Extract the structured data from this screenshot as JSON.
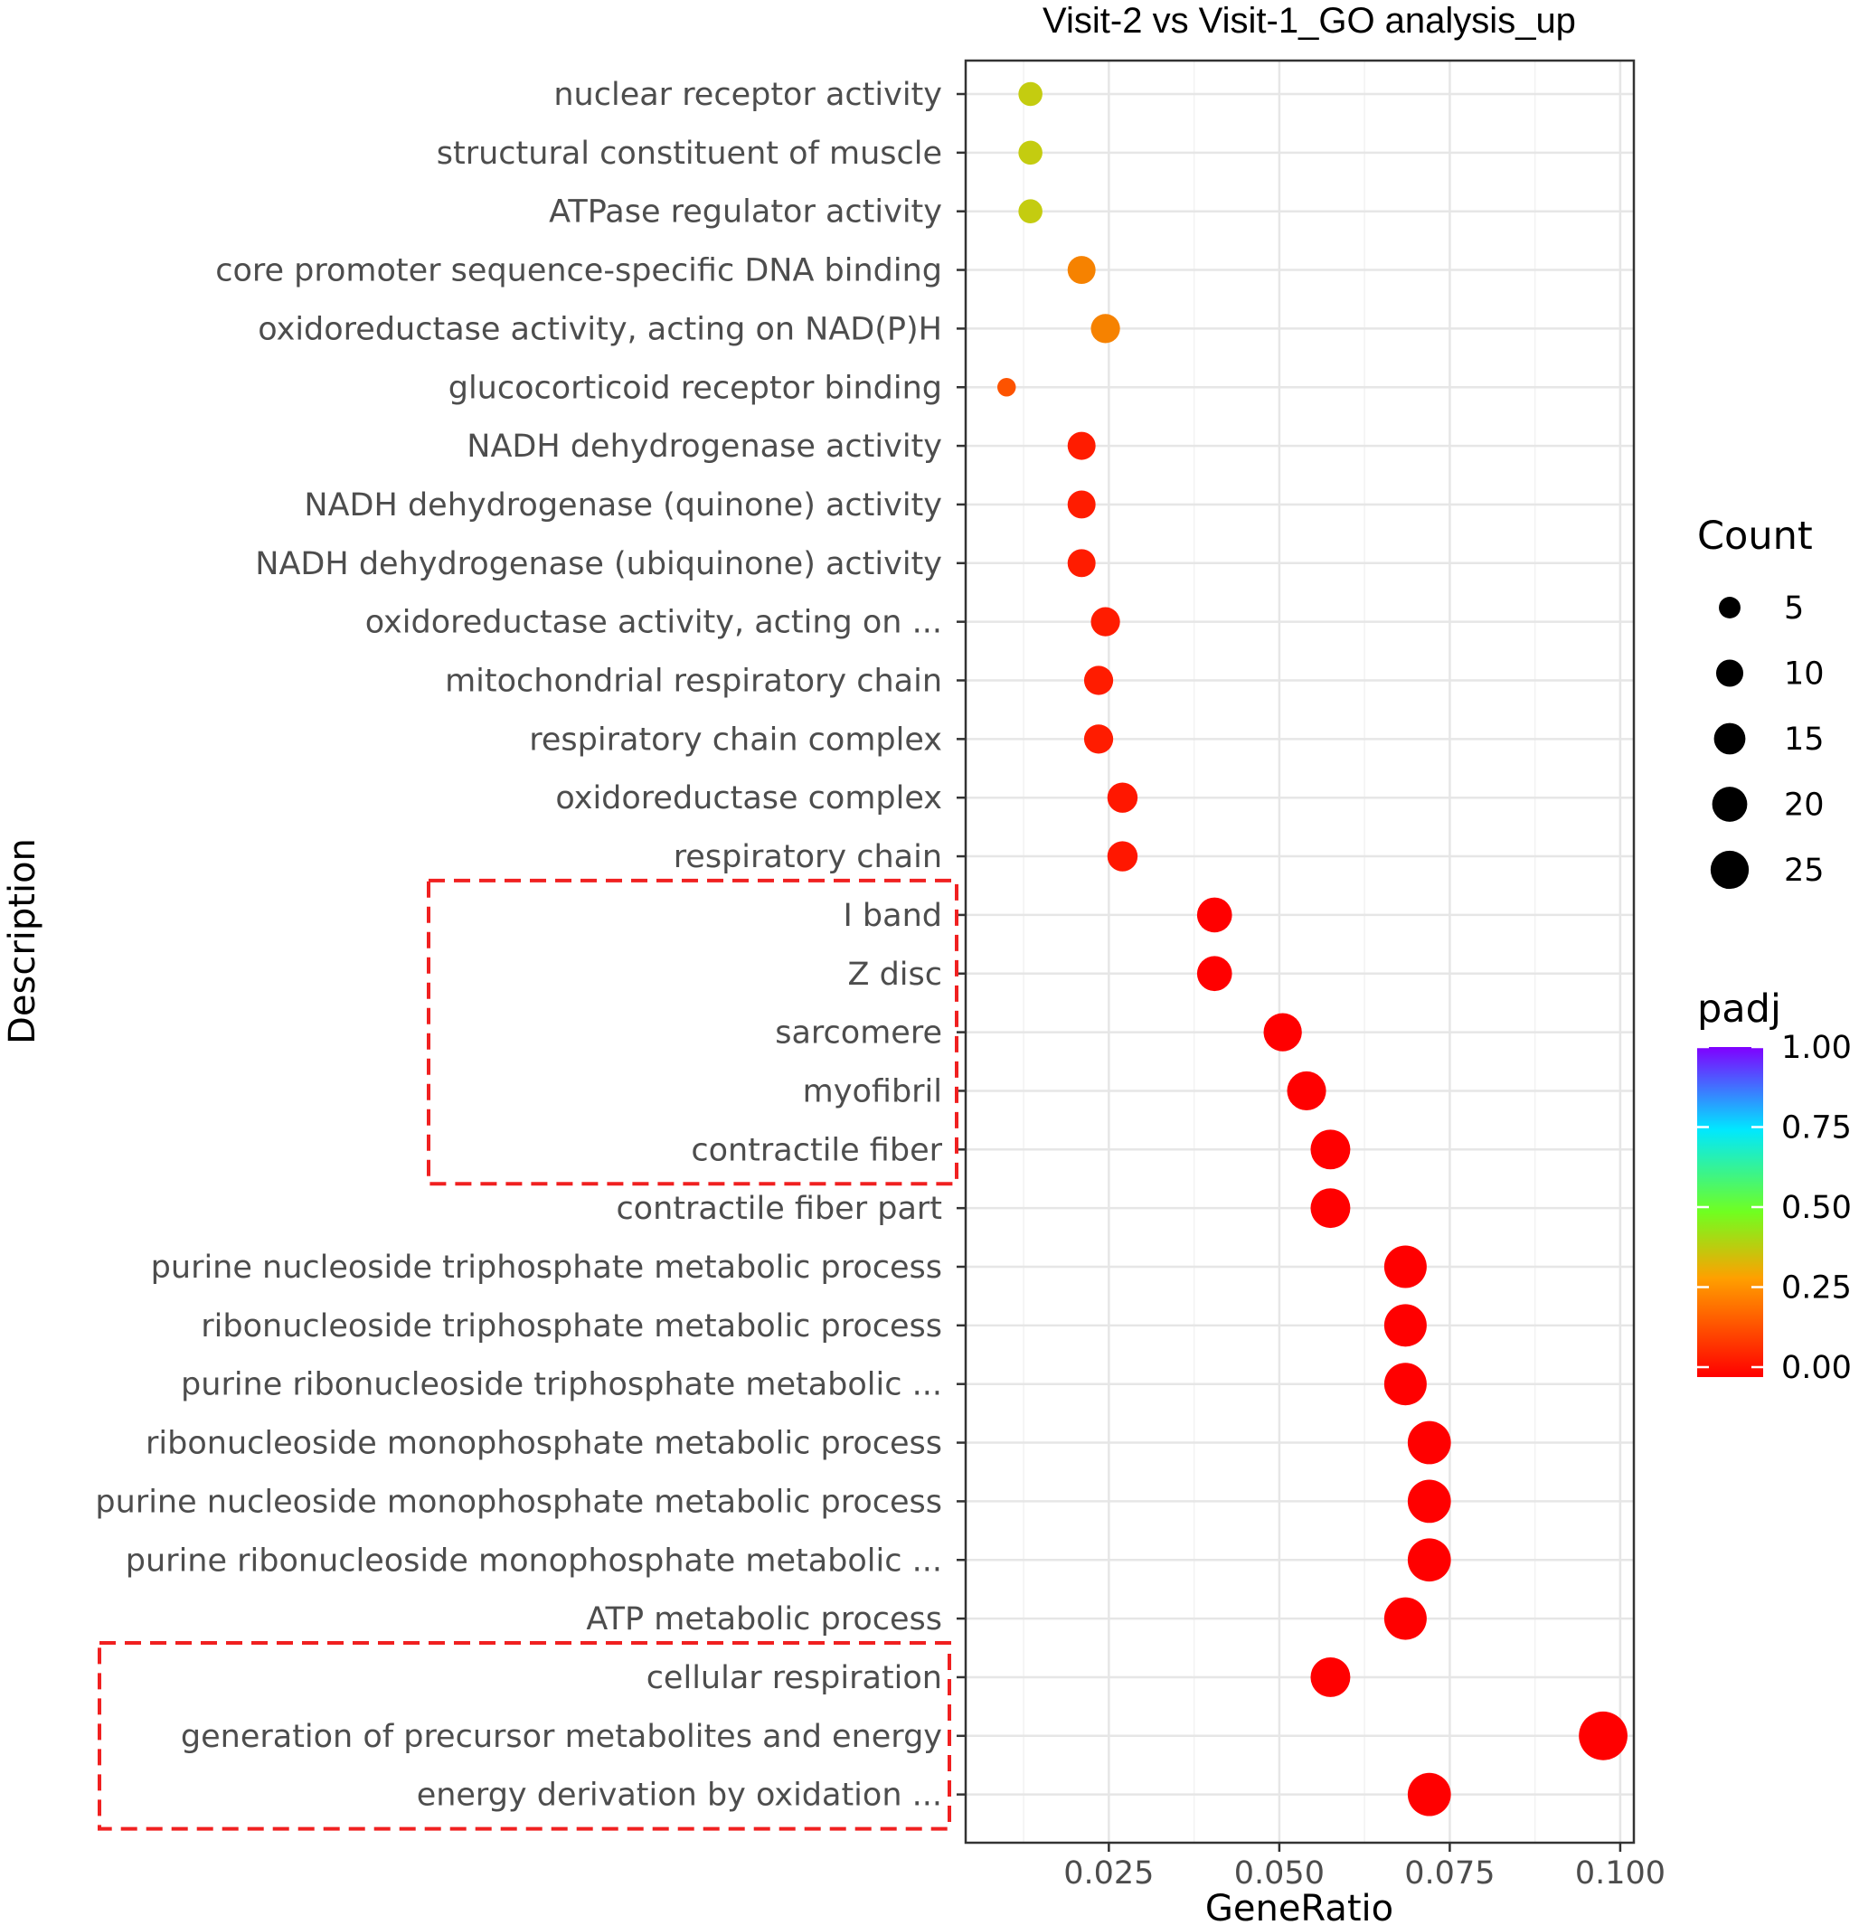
{
  "chart_data": {
    "type": "scatter",
    "title": "Visit-2 vs Visit-1_GO analysis_up",
    "xlabel": "GeneRatio",
    "ylabel": "Description",
    "xlim": [
      0.004,
      0.102
    ],
    "xticks": [
      0.025,
      0.05,
      0.075,
      0.1
    ],
    "xtick_labels": [
      "0.025",
      "0.050",
      "0.075",
      "0.100"
    ],
    "grid": true,
    "terms": [
      {
        "label": "nuclear receptor activity",
        "gene_ratio": 0.0135,
        "count": 5,
        "padj": 0.36
      },
      {
        "label": "structural constituent of muscle",
        "gene_ratio": 0.0135,
        "count": 5,
        "padj": 0.36
      },
      {
        "label": "ATPase regulator activity",
        "gene_ratio": 0.0135,
        "count": 5,
        "padj": 0.36
      },
      {
        "label": "core promoter sequence-specific DNA binding",
        "gene_ratio": 0.021,
        "count": 8,
        "padj": 0.24
      },
      {
        "label": "oxidoreductase activity, acting on NAD(P)H",
        "gene_ratio": 0.0245,
        "count": 9,
        "padj": 0.24
      },
      {
        "label": "glucocorticoid receptor binding",
        "gene_ratio": 0.01,
        "count": 2,
        "padj": 0.17
      },
      {
        "label": "NADH dehydrogenase activity",
        "gene_ratio": 0.021,
        "count": 8,
        "padj": 0.06
      },
      {
        "label": "NADH dehydrogenase (quinone) activity",
        "gene_ratio": 0.021,
        "count": 8,
        "padj": 0.06
      },
      {
        "label": "NADH dehydrogenase (ubiquinone) activity",
        "gene_ratio": 0.021,
        "count": 8,
        "padj": 0.06
      },
      {
        "label": "oxidoreductase activity, acting on ...",
        "gene_ratio": 0.0245,
        "count": 9,
        "padj": 0.06
      },
      {
        "label": "mitochondrial respiratory chain",
        "gene_ratio": 0.0235,
        "count": 9,
        "padj": 0.06
      },
      {
        "label": "respiratory chain complex",
        "gene_ratio": 0.0235,
        "count": 9,
        "padj": 0.06
      },
      {
        "label": "oxidoreductase complex",
        "gene_ratio": 0.027,
        "count": 10,
        "padj": 0.05
      },
      {
        "label": "respiratory chain",
        "gene_ratio": 0.027,
        "count": 10,
        "padj": 0.05
      },
      {
        "label": "I band",
        "gene_ratio": 0.0405,
        "count": 15,
        "padj": 0.0
      },
      {
        "label": "Z disc",
        "gene_ratio": 0.0405,
        "count": 15,
        "padj": 0.0
      },
      {
        "label": "sarcomere",
        "gene_ratio": 0.0505,
        "count": 19,
        "padj": 0.0
      },
      {
        "label": "myofibril",
        "gene_ratio": 0.054,
        "count": 20,
        "padj": 0.0
      },
      {
        "label": "contractile fiber",
        "gene_ratio": 0.0575,
        "count": 21,
        "padj": 0.0
      },
      {
        "label": "contractile fiber part",
        "gene_ratio": 0.0575,
        "count": 21,
        "padj": 0.0
      },
      {
        "label": "purine nucleoside triphosphate metabolic process",
        "gene_ratio": 0.0685,
        "count": 25,
        "padj": 0.0
      },
      {
        "label": "ribonucleoside triphosphate metabolic process",
        "gene_ratio": 0.0685,
        "count": 25,
        "padj": 0.0
      },
      {
        "label": "purine ribonucleoside triphosphate metabolic ...",
        "gene_ratio": 0.0685,
        "count": 25,
        "padj": 0.0
      },
      {
        "label": "ribonucleoside monophosphate metabolic process",
        "gene_ratio": 0.072,
        "count": 26,
        "padj": 0.0
      },
      {
        "label": "purine nucleoside monophosphate metabolic process",
        "gene_ratio": 0.072,
        "count": 26,
        "padj": 0.0
      },
      {
        "label": "purine ribonucleoside monophosphate metabolic ...",
        "gene_ratio": 0.072,
        "count": 26,
        "padj": 0.0
      },
      {
        "label": "ATP metabolic process",
        "gene_ratio": 0.0685,
        "count": 25,
        "padj": 0.0
      },
      {
        "label": "cellular respiration",
        "gene_ratio": 0.0575,
        "count": 21,
        "padj": 0.0
      },
      {
        "label": "generation of precursor metabolites and energy",
        "gene_ratio": 0.0975,
        "count": 35,
        "padj": 0.0
      },
      {
        "label": "energy derivation by oxidation ...",
        "gene_ratio": 0.072,
        "count": 26,
        "padj": 0.0
      }
    ],
    "highlight_groups": [
      {
        "from": "I band",
        "to": "contractile fiber",
        "color": "#f02020"
      },
      {
        "from": "cellular respiration",
        "to": "energy derivation by oxidation ...",
        "color": "#f02020"
      }
    ],
    "legend_count": {
      "title": "Count",
      "values": [
        5,
        10,
        15,
        20,
        25
      ],
      "labels": [
        "5",
        "10",
        "15",
        "20",
        "25"
      ]
    },
    "legend_padj": {
      "title": "padj",
      "range": [
        0,
        1
      ],
      "ticks": [
        1.0,
        0.75,
        0.5,
        0.25,
        0.0
      ],
      "tick_labels": [
        "1.00",
        "0.75",
        "0.50",
        "0.25",
        "0.00"
      ],
      "colors": [
        "#ff0000",
        "#00ff00",
        "#00ffff",
        "#8000ff"
      ]
    }
  }
}
